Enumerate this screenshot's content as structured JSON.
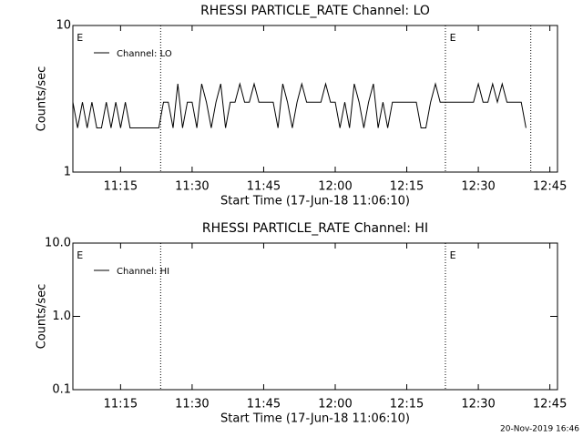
{
  "chart_data": [
    {
      "type": "line",
      "title": "RHESSI PARTICLE_RATE Channel: LO",
      "xlabel": "Start Time (17-Jun-18 11:06:10)",
      "ylabel": "Counts/sec",
      "log_y": true,
      "xlim": [
        665,
        766.6
      ],
      "ylim": [
        1,
        10
      ],
      "xticks": [
        {
          "value": 675,
          "label": "11:15"
        },
        {
          "value": 690,
          "label": "11:30"
        },
        {
          "value": 705,
          "label": "11:45"
        },
        {
          "value": 720,
          "label": "12:00"
        },
        {
          "value": 735,
          "label": "12:15"
        },
        {
          "value": 750,
          "label": "12:30"
        },
        {
          "value": 765,
          "label": "12:45"
        }
      ],
      "yticks": [
        1,
        10
      ],
      "flags": [
        683.4,
        743.1,
        761.0
      ],
      "annotations": [
        {
          "text": "E",
          "x": 665.8
        },
        {
          "text": "E",
          "x": 744.0
        }
      ],
      "series": [
        {
          "name": "Channel: LO",
          "color": "#000000",
          "x": [
            665,
            666,
            667,
            668,
            669,
            670,
            671,
            672,
            673,
            674,
            675,
            676,
            677,
            678,
            679,
            680,
            681,
            682,
            683,
            684,
            685,
            686,
            687,
            688,
            689,
            690,
            691,
            692,
            693,
            694,
            695,
            696,
            697,
            698,
            699,
            700,
            701,
            702,
            703,
            704,
            705,
            706,
            707,
            708,
            709,
            710,
            711,
            712,
            713,
            714,
            715,
            716,
            717,
            718,
            719,
            720,
            721,
            722,
            723,
            724,
            725,
            726,
            727,
            728,
            729,
            730,
            731,
            732,
            733,
            734,
            735,
            736,
            737,
            738,
            739,
            740,
            741,
            742,
            743,
            744,
            745,
            746,
            747,
            748,
            749,
            750,
            751,
            752,
            753,
            754,
            755,
            756,
            757,
            758,
            759,
            760
          ],
          "values": [
            3,
            2,
            3,
            2,
            3,
            2,
            2,
            3,
            2,
            3,
            2,
            3,
            2,
            2,
            2,
            2,
            2,
            2,
            2,
            3,
            3,
            2,
            4,
            2,
            3,
            3,
            2,
            4,
            3,
            2,
            3,
            4,
            2,
            3,
            3,
            4,
            3,
            3,
            4,
            3,
            3,
            3,
            3,
            2,
            4,
            3,
            2,
            3,
            4,
            3,
            3,
            3,
            3,
            4,
            3,
            3,
            2,
            3,
            2,
            4,
            3,
            2,
            3,
            4,
            2,
            3,
            2,
            3,
            3,
            3,
            3,
            3,
            3,
            2,
            2,
            3,
            4,
            3,
            3,
            3,
            3,
            3,
            3,
            3,
            3,
            4,
            3,
            3,
            4,
            3,
            4,
            3,
            3,
            3,
            3,
            2
          ]
        }
      ]
    },
    {
      "type": "line",
      "title": "RHESSI PARTICLE_RATE Channel: HI",
      "xlabel": "Start Time (17-Jun-18 11:06:10)",
      "ylabel": "Counts/sec",
      "log_y": true,
      "xlim": [
        665,
        766.6
      ],
      "ylim": [
        0.1,
        10
      ],
      "xticks": [
        {
          "value": 675,
          "label": "11:15"
        },
        {
          "value": 690,
          "label": "11:30"
        },
        {
          "value": 705,
          "label": "11:45"
        },
        {
          "value": 720,
          "label": "12:00"
        },
        {
          "value": 735,
          "label": "12:15"
        },
        {
          "value": 750,
          "label": "12:30"
        },
        {
          "value": 765,
          "label": "12:45"
        }
      ],
      "yticks": [
        0.1,
        {
          "value": 1,
          "label": "1.0"
        },
        {
          "value": 10,
          "label": "10.0"
        }
      ],
      "flags": [
        683.4,
        743.1
      ],
      "annotations": [
        {
          "text": "E",
          "x": 665.8
        },
        {
          "text": "E",
          "x": 744.0
        }
      ],
      "series": [
        {
          "name": "Channel: HI",
          "color": "#000000",
          "x": [],
          "values": []
        }
      ]
    }
  ],
  "footer": "20-Nov-2019 16:46"
}
